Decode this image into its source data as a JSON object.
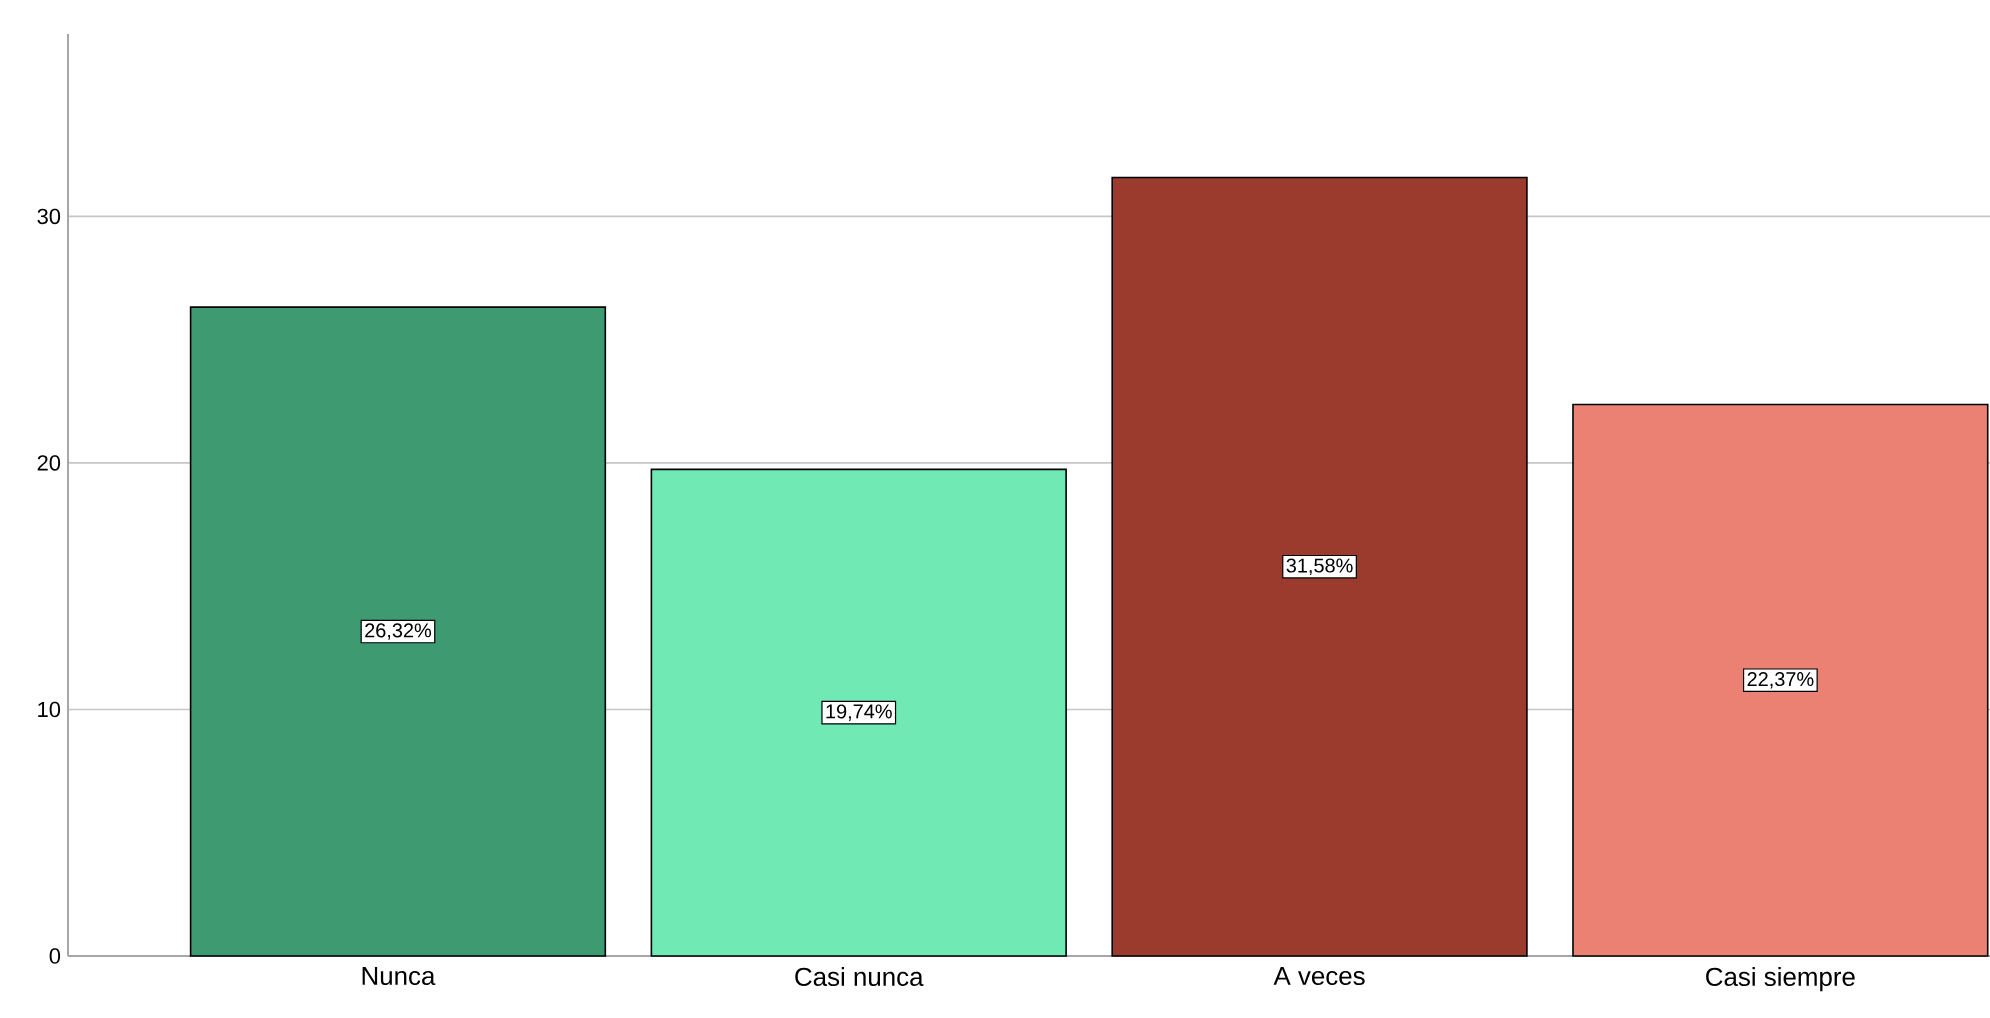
{
  "chart_data": {
    "type": "bar",
    "categories": [
      "Nunca",
      "Casi nunca",
      "A veces",
      "Casi siempre"
    ],
    "values": [
      26.32,
      19.74,
      31.58,
      22.37
    ],
    "colors": [
      "#3e9a70",
      "#70e9b4",
      "#9a3b2d",
      "#eb8172"
    ],
    "value_labels": [
      "26,32%",
      "19,74%",
      "31,58%",
      "22,37%"
    ],
    "ylim": [
      0,
      37.4
    ],
    "yticks": [
      0,
      10,
      20,
      30
    ],
    "grid": "y"
  }
}
